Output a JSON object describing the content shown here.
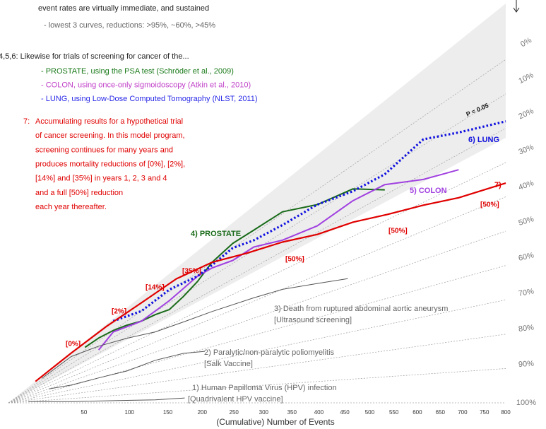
{
  "chart_data": {
    "type": "line",
    "intro": [
      "event rates are virtually immediate, and sustained",
      "- lowest 3 curves, reductions: >95%, ~60%, >45%"
    ],
    "cancer_heading": "4,5,6:  Likewise for trials of screening for cancer of the...",
    "cancer_items": [
      {
        "text": "- PROSTATE, using the PSA test (Schröder et al., 2009)",
        "color": "#1a7a1a"
      },
      {
        "text": "- COLON, using once-only sigmoidoscopy (Atkin et al., 2010)",
        "color": "#c040c8"
      },
      {
        "text": "- LUNG, using Low-Dose Computed Tomography (NLST, 2011)",
        "color": "#2a2ae8"
      }
    ],
    "model_number": "7:",
    "model_text": [
      "Accumulating results for a hypothetical trial",
      "of cancer screening. In this model program,",
      "screening continues for many years and",
      "produces mortality reductions of [0%], [2%],",
      "[14%] and [35%] in years 1, 2, 3 and 4",
      "and a full [50%] reduction",
      "each year thereafter."
    ],
    "annotations": [
      "[0%]",
      "[2%]",
      "[14%]",
      "[35%]",
      "[50%]",
      "[50%]",
      "[50%]"
    ],
    "significance_label": "P = 0.05",
    "xlabel": "(Cumulative) Number of Events",
    "xlim": [
      0,
      800
    ],
    "xscale": "power",
    "xexponent": 0.68,
    "xticks": [
      50,
      100,
      150,
      200,
      250,
      300,
      350,
      400,
      450,
      500,
      550,
      600,
      650,
      700,
      750,
      800
    ],
    "reduction_ticks": [
      {
        "value": 0,
        "label": "0%"
      },
      {
        "value": 10,
        "label": "10%"
      },
      {
        "value": 20,
        "label": "20%"
      },
      {
        "value": 30,
        "label": "30%"
      },
      {
        "value": 40,
        "label": "40%"
      },
      {
        "value": 50,
        "label": "50%"
      },
      {
        "value": 60,
        "label": "60%"
      },
      {
        "value": 70,
        "label": "70%"
      },
      {
        "value": 80,
        "label": "80%"
      },
      {
        "value": 90,
        "label": "90%"
      },
      {
        "value": 100,
        "label": "100%"
      }
    ],
    "series": [
      {
        "name": "4) PROSTATE",
        "color": "#1a6b1a",
        "style": "solid",
        "x": [
          51,
          65,
          81,
          97,
          115,
          133,
          152,
          172,
          193,
          215,
          248,
          283,
          333,
          397,
          466,
          531
        ],
        "values": [
          -5,
          -4,
          0,
          5,
          11,
          13,
          16,
          12,
          7,
          0,
          -3,
          -2,
          -1,
          7,
          10,
          18
        ]
      },
      {
        "name": "5) COLON",
        "color": "#a040e0",
        "style": "solid",
        "x": [
          65,
          81,
          115,
          152,
          193,
          215,
          248,
          283,
          333,
          397,
          466,
          531,
          613,
          691
        ],
        "values": [
          15,
          2,
          11,
          8,
          3,
          4,
          8,
          8,
          14,
          17,
          15,
          16,
          22,
          25
        ]
      },
      {
        "name": "6) LUNG",
        "color": "#1010e0",
        "style": "dotted",
        "x": [
          81,
          115,
          152,
          193,
          215,
          248,
          283,
          333,
          397,
          466,
          531,
          613,
          691,
          800
        ],
        "values": [
          -13,
          0,
          -2,
          3,
          2,
          0,
          4,
          6,
          7,
          11,
          12,
          8,
          13,
          18
        ]
      },
      {
        "name": "7)",
        "color": "#e00000",
        "style": "thick",
        "x": [
          11,
          38,
          73,
          115,
          162,
          215,
          271,
          333,
          397,
          466,
          537,
          613,
          691,
          800
        ],
        "values": [
          -15,
          -15,
          -13,
          -9,
          -7,
          0,
          9,
          15,
          21,
          24,
          28,
          31,
          34,
          36
        ]
      },
      {
        "name": "3) Death from ruptured abdominal aortic aneurysm",
        "note": "[Ultrasound screening]",
        "color": "#555555",
        "style": "thin",
        "x": [
          15,
          38,
          65,
          97,
          133,
          172,
          215,
          283,
          333,
          397,
          456
        ],
        "values": [
          -6,
          -7,
          9,
          21,
          30,
          33,
          35,
          38,
          40,
          44,
          47
        ]
      },
      {
        "name": "2) Paralytic/non-paralytic poliomyelitis",
        "note": "[Salk Vaccine]",
        "color": "#555555",
        "style": "thin",
        "x": [
          20,
          38,
          65,
          97,
          133,
          172,
          204
        ],
        "values": [
          50,
          59,
          60,
          61,
          58,
          59,
          62
        ]
      },
      {
        "name": "1) Human Papilloma Virus (HPV) infection",
        "note": "[Quadrivalent HPV vaccine]",
        "color": "#555555",
        "style": "thin",
        "x": [
          7,
          38,
          97,
          133,
          174
        ],
        "values": [
          90,
          97,
          97,
          97,
          96
        ]
      }
    ]
  }
}
